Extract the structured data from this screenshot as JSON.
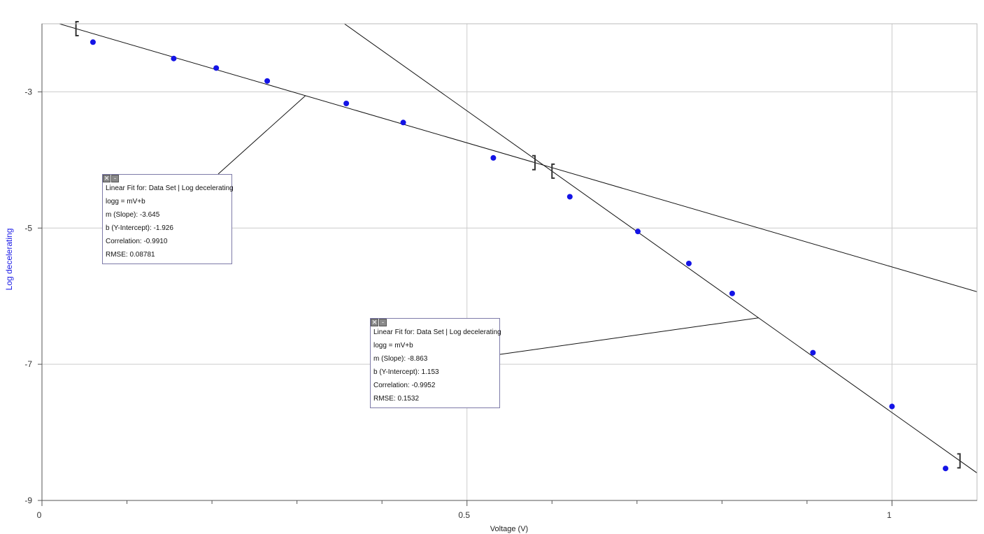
{
  "chart_data": {
    "type": "scatter",
    "xlabel": "Voltage (V)",
    "ylabel": "Log decelerating",
    "xlim": [
      0,
      1.1
    ],
    "ylim": [
      -9,
      -2
    ],
    "x_ticks": [
      {
        "v": 0,
        "label": "0"
      },
      {
        "v": 0.5,
        "label": "0.5"
      },
      {
        "v": 1,
        "label": "1"
      }
    ],
    "x_minor_ticks": [
      0.1,
      0.2,
      0.3,
      0.4,
      0.6,
      0.7,
      0.8,
      0.9,
      1.0
    ],
    "y_ticks": [
      {
        "v": -3,
        "label": "-3"
      },
      {
        "v": -5,
        "label": "-5"
      },
      {
        "v": -7,
        "label": "-7"
      },
      {
        "v": -9,
        "label": "-9"
      }
    ],
    "grid": true,
    "point_color": "#1414e6",
    "series": [
      {
        "x": [
          0.06,
          0.155,
          0.205,
          0.265,
          0.358,
          0.425,
          0.531,
          0.621,
          0.701,
          0.761,
          0.812,
          0.907,
          1.0,
          1.063
        ],
        "y": [
          -2.27,
          -2.51,
          -2.65,
          -2.84,
          -3.17,
          -3.45,
          -3.97,
          -4.54,
          -5.05,
          -5.52,
          -5.96,
          -6.83,
          -7.62,
          -8.53
        ]
      }
    ],
    "fits": [
      {
        "slope": -3.645,
        "intercept": -1.926,
        "x_range": [
          0.0,
          1.1
        ],
        "bracket_start": 0.04,
        "bracket_end": 0.58
      },
      {
        "slope": -8.863,
        "intercept": 1.153,
        "x_range": [
          0.35,
          1.1
        ],
        "bracket_start": 0.6,
        "bracket_end": 1.08
      }
    ]
  },
  "fit_boxes": [
    {
      "close_icon": "close-icon",
      "minimize_icon": "minimize-icon",
      "title": "Linear Fit for: Data Set | Log decelerating",
      "equation": "logg = mV+b",
      "slope": "m (Slope): -3.645",
      "intercept": "b (Y-Intercept): -1.926",
      "correlation": "Correlation: -0.9910",
      "rmse": "RMSE: 0.08781"
    },
    {
      "close_icon": "close-icon",
      "minimize_icon": "minimize-icon",
      "title": "Linear Fit for: Data Set | Log decelerating",
      "equation": "logg = mV+b",
      "slope": "m (Slope): -8.863",
      "intercept": "b (Y-Intercept): 1.153",
      "correlation": "Correlation: -0.9952",
      "rmse": "RMSE: 0.1532"
    }
  ]
}
